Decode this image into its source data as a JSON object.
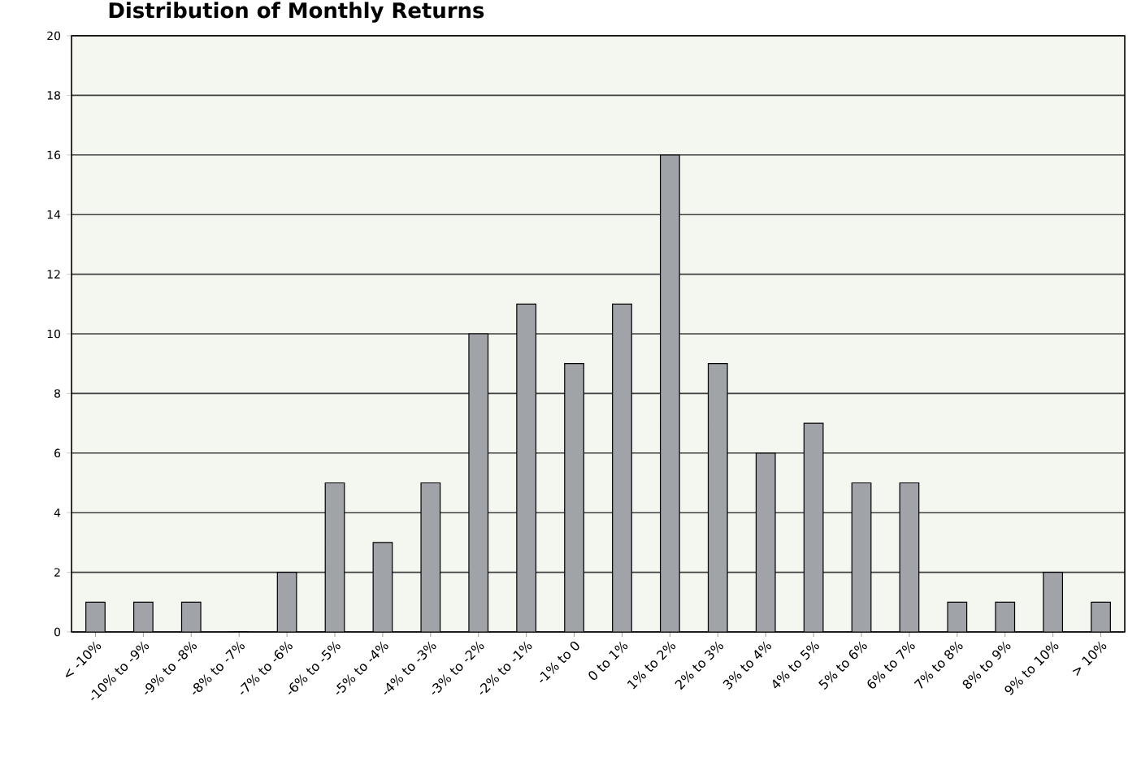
{
  "chart_data": {
    "type": "bar",
    "title": "Distribution of Monthly Returns",
    "categories": [
      "< -10%",
      "-10% to -9%",
      "-9% to -8%",
      "-8% to -7%",
      "-7% to -6%",
      "-6% to -5%",
      "-5% to -4%",
      "-4% to -3%",
      "-3% to -2%",
      "-2% to -1%",
      "-1% to 0",
      "0 to 1%",
      "1% to 2%",
      "2% to 3%",
      "3% to 4%",
      "4% to 5%",
      "5% to 6%",
      "6% to 7%",
      "7% to 8%",
      "8% to 9%",
      "9% to 10%",
      "> 10%"
    ],
    "values": [
      1,
      1,
      1,
      0,
      2,
      5,
      3,
      5,
      10,
      11,
      9,
      11,
      16,
      9,
      6,
      7,
      5,
      5,
      1,
      1,
      2,
      1
    ],
    "color": "#a0a3a7",
    "ylim": [
      0,
      20
    ],
    "yticks": [
      0,
      2,
      4,
      6,
      8,
      10,
      12,
      14,
      16,
      18,
      20
    ],
    "grid": "y"
  }
}
